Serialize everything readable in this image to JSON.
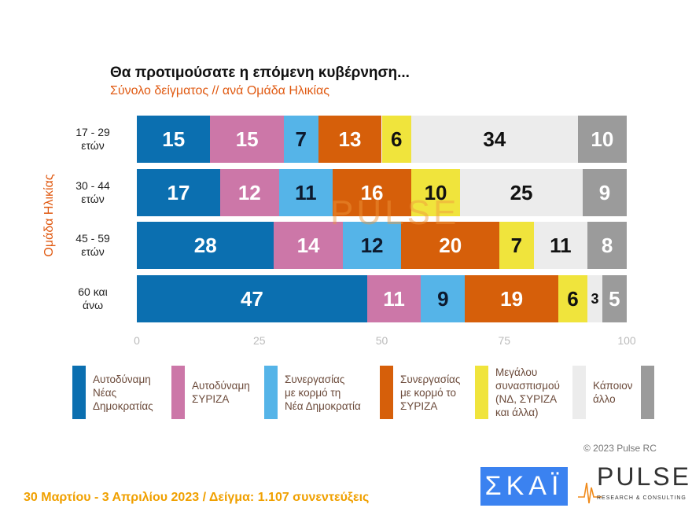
{
  "chart_data": {
    "type": "bar",
    "orientation": "horizontal-stacked",
    "title": "Θα προτιμούσατε η επόμενη κυβέρνηση...",
    "subtitle": "Σύνολο δείγματος // ανά Ομάδα Ηλικίας",
    "ylabel": "Ομάδα Ηλικίας",
    "categories": [
      [
        "17 - 29",
        "ετών"
      ],
      [
        "30 - 44",
        "ετών"
      ],
      [
        "45 - 59",
        "ετών"
      ],
      [
        "60 και",
        "άνω"
      ]
    ],
    "xlim": [
      0,
      100
    ],
    "xticks": [
      "0",
      "25",
      "50",
      "75",
      "100"
    ],
    "legend_position": "bottom",
    "series": [
      {
        "name": "Αυτοδύναμη Νέας Δημοκρατίας",
        "color": "#0b6fb0",
        "text_color": "#ffffff",
        "values": [
          15,
          17,
          28,
          47
        ]
      },
      {
        "name": "Αυτοδύναμη ΣΥΡΙΖΑ",
        "color": "#cc77a8",
        "text_color": "#ffffff",
        "values": [
          15,
          12,
          14,
          11
        ]
      },
      {
        "name": "Συνεργασίας με κορμό τη Νέα Δημοκρατία",
        "color": "#55b4e8",
        "text_color": "#0d1a2e",
        "values": [
          7,
          11,
          12,
          9
        ]
      },
      {
        "name": "Συνεργασίας με κορμό το ΣΥΡΙΖΑ",
        "color": "#d65f0a",
        "text_color": "#ffffff",
        "values": [
          13,
          16,
          20,
          19
        ]
      },
      {
        "name": "Μεγάλου συνασπισμού (ΝΔ, ΣΥΡΙΖΑ και άλλα)",
        "color": "#f0e43c",
        "text_color": "#111111",
        "values": [
          6,
          10,
          7,
          6
        ]
      },
      {
        "name": "Κάποιον άλλο",
        "color": "#ececec",
        "text_color": "#111111",
        "values": [
          34,
          25,
          11,
          3
        ]
      },
      {
        "name": "",
        "color": "#9b9b9b",
        "text_color": "#ffffff",
        "values": [
          10,
          9,
          8,
          5
        ]
      }
    ]
  },
  "legend_lines": [
    [
      "Αυτοδύναμη",
      "Νέας",
      "Δημοκρατίας"
    ],
    [
      "Αυτοδύναμη",
      "ΣΥΡΙΖΑ"
    ],
    [
      "Συνεργασίας",
      "με κορμό τη",
      "Νέα Δημοκρατία"
    ],
    [
      "Συνεργασίας",
      "με κορμό το",
      "ΣΥΡΙΖΑ"
    ],
    [
      "Μεγάλου",
      "συνασπισμού",
      "(ΝΔ, ΣΥΡΙΖΑ",
      "και άλλα)"
    ],
    [
      "Κάποιον",
      "άλλο"
    ],
    []
  ],
  "footer": "30 Μαρτίου - 3  Απριλίου  2023  /  Δείγμα:  1.107 συνεντεύξεις",
  "copyright": "© 2023 Pulse RC",
  "logos": {
    "skai": "ΣΚΑΪ",
    "pulse": "PULSE",
    "pulse_sub": "RESEARCH & CONSULTING"
  },
  "watermark": "PULSE"
}
